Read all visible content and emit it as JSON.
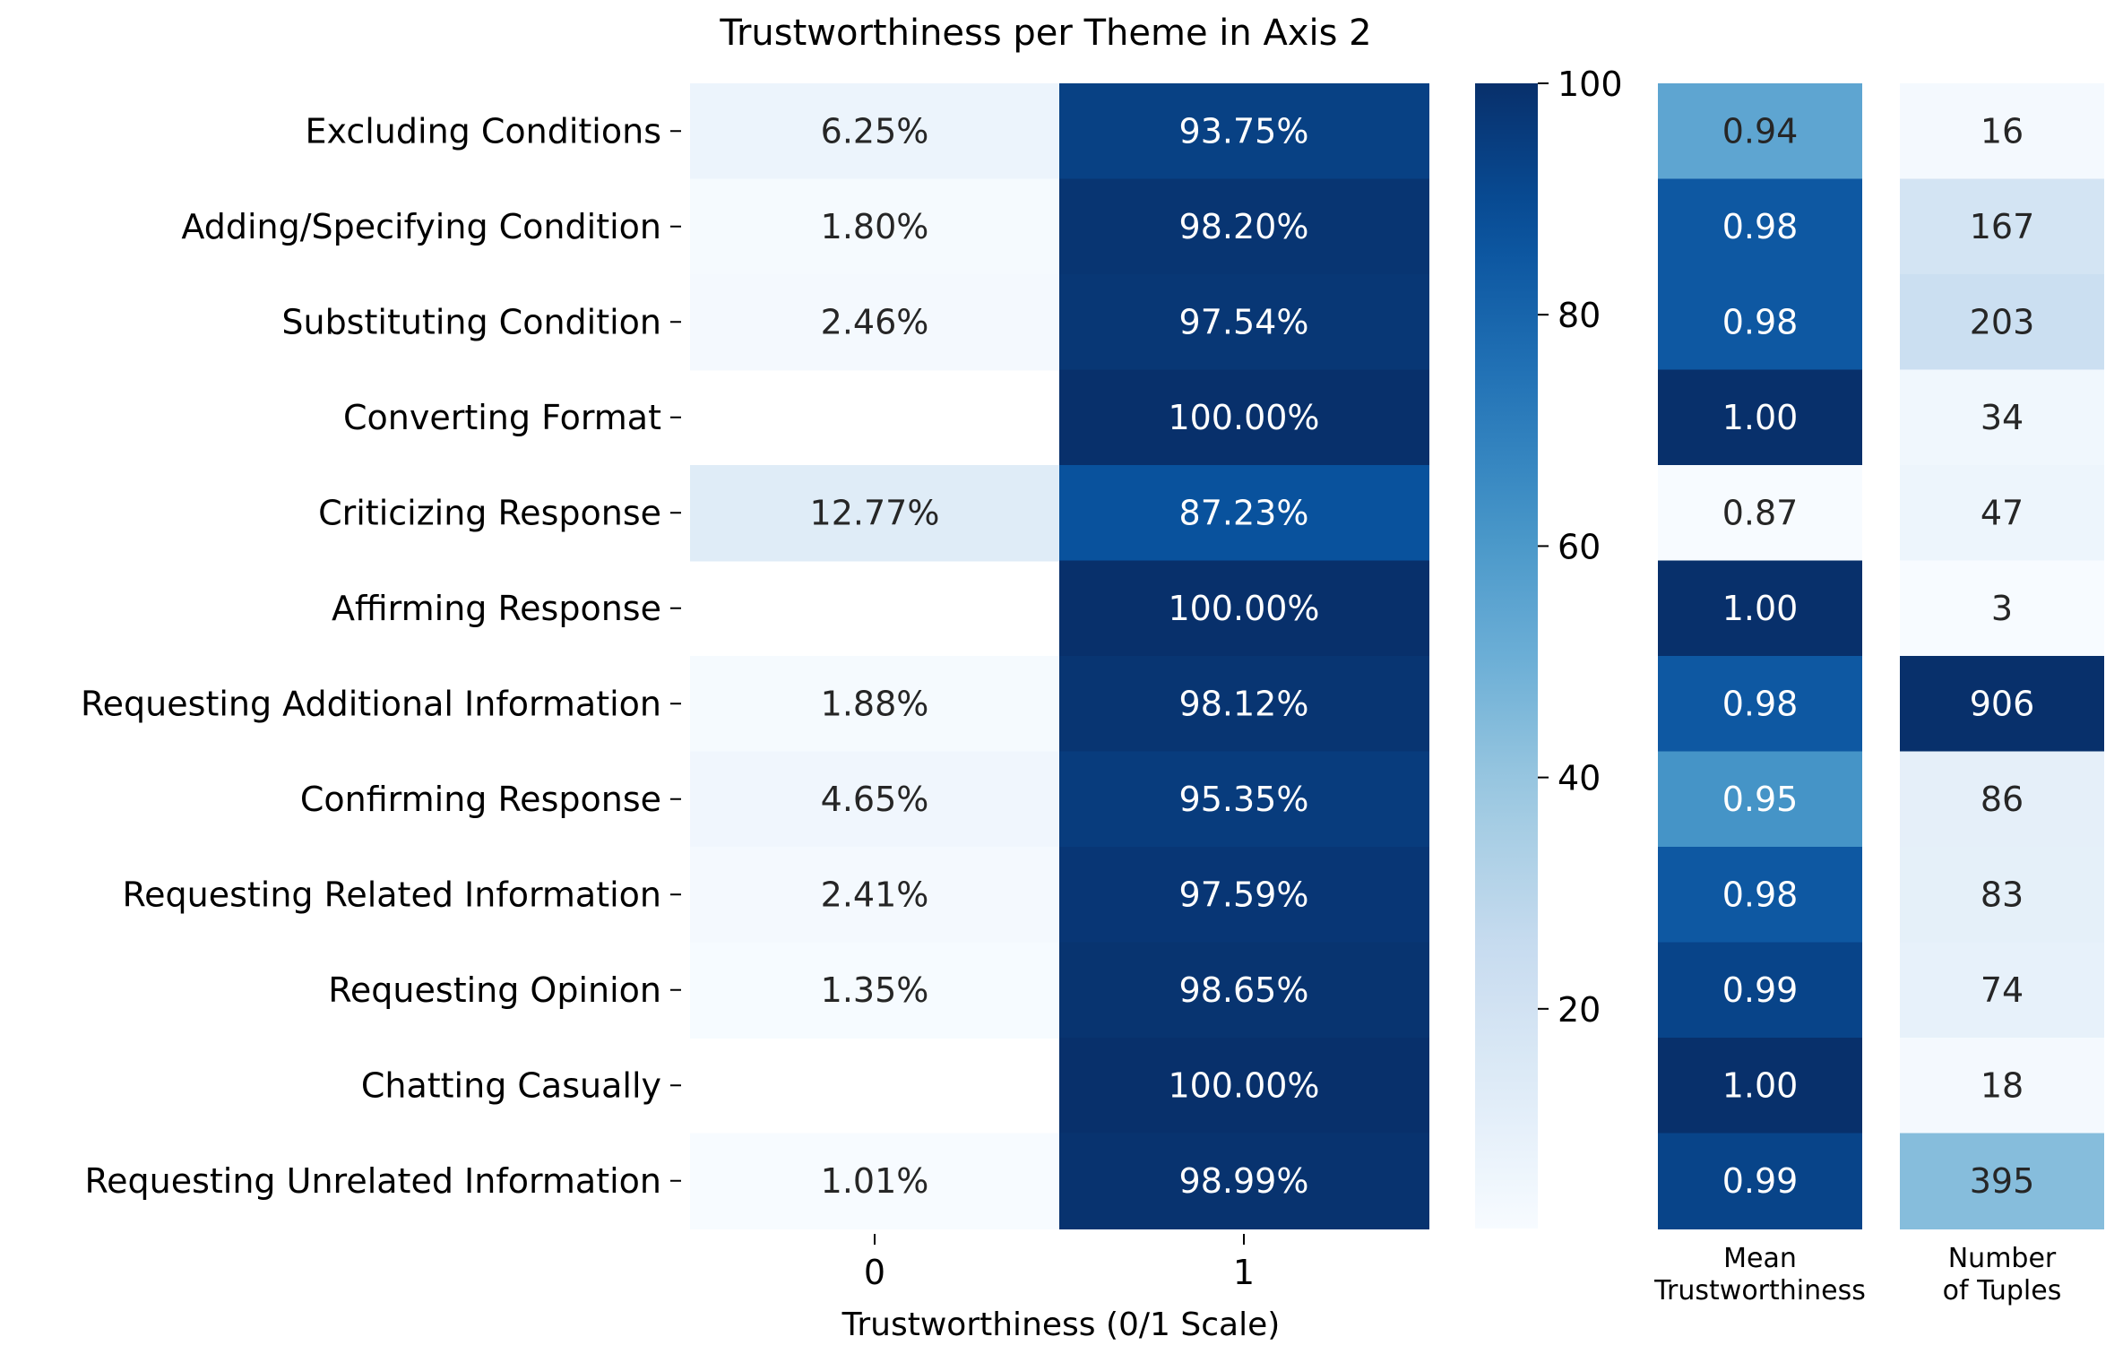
{
  "chart_data": {
    "type": "heatmap",
    "title": "Trustworthiness per Theme in Axis 2",
    "xlabel": "Trustworthiness (0/1 Scale)",
    "x_categories": [
      "0",
      "1"
    ],
    "rows": [
      "Excluding Conditions",
      "Adding/Specifying Condition",
      "Substituting Condition",
      "Converting Format",
      "Criticizing Response",
      "Affirming Response",
      "Requesting Additional Information",
      "Confirming Response",
      "Requesting Related Information",
      "Requesting Opinion",
      "Chatting Casually",
      "Requesting Unrelated Information"
    ],
    "values": [
      [
        6.25,
        93.75
      ],
      [
        1.8,
        98.2
      ],
      [
        2.46,
        97.54
      ],
      [
        null,
        100.0
      ],
      [
        12.77,
        87.23
      ],
      [
        null,
        100.0
      ],
      [
        1.88,
        98.12
      ],
      [
        4.65,
        95.35
      ],
      [
        2.41,
        97.59
      ],
      [
        1.35,
        98.65
      ],
      [
        null,
        100.0
      ],
      [
        1.01,
        98.99
      ]
    ],
    "colorbar": {
      "min": 1.01,
      "max": 100,
      "ticks": [
        20,
        40,
        60,
        80,
        100
      ]
    },
    "side_columns": [
      {
        "label_lines": [
          "Mean",
          "Trustworthiness"
        ],
        "values": [
          0.94,
          0.98,
          0.98,
          1.0,
          0.87,
          1.0,
          0.98,
          0.95,
          0.98,
          0.99,
          1.0,
          0.99
        ],
        "decimals": 2
      },
      {
        "label_lines": [
          "Number",
          "of Tuples"
        ],
        "values": [
          16,
          167,
          203,
          34,
          47,
          3,
          906,
          86,
          83,
          74,
          18,
          395
        ],
        "decimals": 0
      }
    ],
    "colormap": "Blues"
  }
}
